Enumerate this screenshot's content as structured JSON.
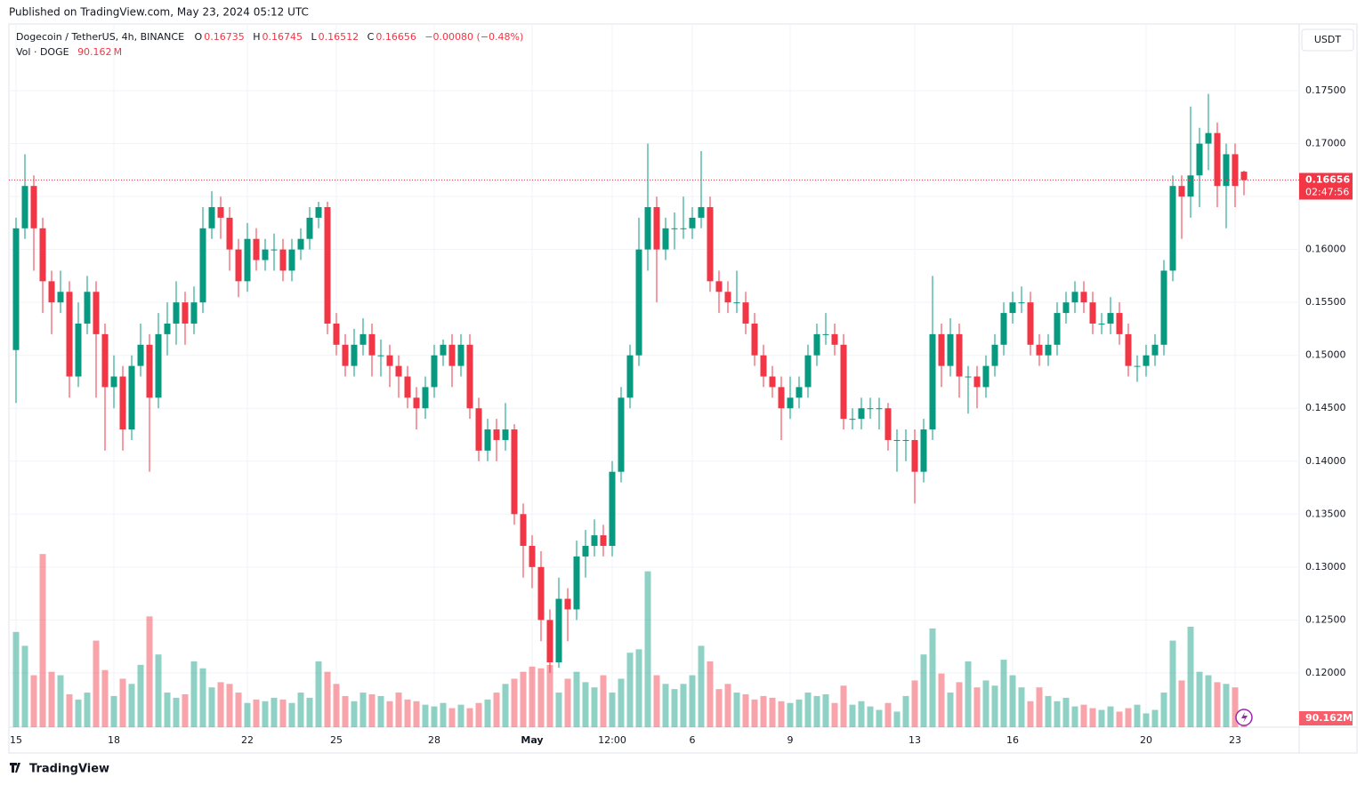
{
  "published": "Published on TradingView.com, May 23, 2024 05:12 UTC",
  "brand": "TradingView",
  "chart_data": {
    "type": "candlestick",
    "title": "Dogecoin / TetherUS, 4h, BINANCE",
    "ohlc_keys": [
      "O",
      "H",
      "L",
      "C"
    ],
    "change": "−0.00080 (−0.48%)",
    "volume_title": "Vol · DOGE",
    "volume_unit": "M",
    "currency": "USDT",
    "countdown": "02:47:56",
    "up_color": "#089981",
    "down_color": "#f23645",
    "ylim": [
      0.11487,
      0.1813
    ],
    "volume_ylim": [
      0,
      4060
    ],
    "yticks": [
      {
        "value": 0.12,
        "label": "0.12000"
      },
      {
        "value": 0.125,
        "label": "0.12500"
      },
      {
        "value": 0.13,
        "label": "0.13000"
      },
      {
        "value": 0.135,
        "label": "0.13500"
      },
      {
        "value": 0.14,
        "label": "0.14000"
      },
      {
        "value": 0.145,
        "label": "0.14500"
      },
      {
        "value": 0.15,
        "label": "0.15000"
      },
      {
        "value": 0.155,
        "label": "0.15500"
      },
      {
        "value": 0.16,
        "label": "0.16000"
      },
      {
        "value": 0.165,
        "label": "0.16500"
      },
      {
        "value": 0.17,
        "label": "0.17000"
      },
      {
        "value": 0.175,
        "label": "0.17500"
      }
    ],
    "grid": true,
    "categories": [
      "15",
      null,
      null,
      null,
      null,
      null,
      null,
      null,
      null,
      null,
      null,
      "18",
      null,
      null,
      null,
      null,
      null,
      null,
      null,
      null,
      null,
      null,
      null,
      null,
      null,
      null,
      "22",
      null,
      null,
      null,
      null,
      null,
      null,
      null,
      null,
      null,
      "25",
      null,
      null,
      null,
      null,
      null,
      null,
      null,
      null,
      null,
      null,
      "28",
      null,
      null,
      null,
      null,
      null,
      null,
      null,
      null,
      null,
      null,
      "May",
      null,
      null,
      null,
      null,
      null,
      null,
      null,
      null,
      "12:00",
      null,
      null,
      null,
      null,
      null,
      null,
      null,
      null,
      "6",
      null,
      null,
      null,
      null,
      null,
      null,
      null,
      null,
      null,
      null,
      "9",
      null,
      null,
      null,
      null,
      null,
      null,
      null,
      null,
      null,
      null,
      null,
      null,
      null,
      "13",
      null,
      null,
      null,
      null,
      null,
      null,
      null,
      null,
      null,
      null,
      "16",
      null,
      null,
      null,
      null,
      null,
      null,
      null,
      null,
      null,
      null,
      null,
      null,
      null,
      null,
      "20",
      null,
      null,
      null,
      null,
      null,
      null,
      null,
      null,
      null,
      "23",
      null
    ],
    "ohlc": [
      [
        0.1505,
        0.163,
        0.1455,
        0.162
      ],
      [
        0.162,
        0.169,
        0.161,
        0.166
      ],
      [
        0.166,
        0.167,
        0.158,
        0.162
      ],
      [
        0.162,
        0.163,
        0.154,
        0.157
      ],
      [
        0.157,
        0.158,
        0.152,
        0.155
      ],
      [
        0.155,
        0.158,
        0.154,
        0.156
      ],
      [
        0.156,
        0.157,
        0.146,
        0.148
      ],
      [
        0.148,
        0.155,
        0.147,
        0.153
      ],
      [
        0.153,
        0.1575,
        0.152,
        0.156
      ],
      [
        0.156,
        0.157,
        0.146,
        0.152
      ],
      [
        0.152,
        0.153,
        0.141,
        0.147
      ],
      [
        0.147,
        0.15,
        0.145,
        0.148
      ],
      [
        0.148,
        0.149,
        0.141,
        0.143
      ],
      [
        0.143,
        0.15,
        0.142,
        0.149
      ],
      [
        0.149,
        0.153,
        0.148,
        0.151
      ],
      [
        0.151,
        0.152,
        0.139,
        0.146
      ],
      [
        0.146,
        0.154,
        0.145,
        0.152
      ],
      [
        0.152,
        0.155,
        0.15,
        0.153
      ],
      [
        0.153,
        0.157,
        0.151,
        0.155
      ],
      [
        0.155,
        0.156,
        0.151,
        0.153
      ],
      [
        0.153,
        0.1565,
        0.152,
        0.155
      ],
      [
        0.155,
        0.164,
        0.154,
        0.162
      ],
      [
        0.162,
        0.1655,
        0.161,
        0.164
      ],
      [
        0.164,
        0.165,
        0.161,
        0.163
      ],
      [
        0.163,
        0.164,
        0.158,
        0.16
      ],
      [
        0.16,
        0.161,
        0.1555,
        0.157
      ],
      [
        0.157,
        0.1625,
        0.156,
        0.161
      ],
      [
        0.161,
        0.162,
        0.158,
        0.159
      ],
      [
        0.159,
        0.161,
        0.158,
        0.16
      ],
      [
        0.16,
        0.1615,
        0.158,
        0.16
      ],
      [
        0.16,
        0.161,
        0.157,
        0.158
      ],
      [
        0.158,
        0.161,
        0.157,
        0.16
      ],
      [
        0.16,
        0.162,
        0.159,
        0.161
      ],
      [
        0.161,
        0.164,
        0.16,
        0.163
      ],
      [
        0.163,
        0.1645,
        0.162,
        0.164
      ],
      [
        0.164,
        0.1645,
        0.152,
        0.153
      ],
      [
        0.153,
        0.154,
        0.15,
        0.151
      ],
      [
        0.151,
        0.152,
        0.148,
        0.149
      ],
      [
        0.149,
        0.1525,
        0.148,
        0.151
      ],
      [
        0.151,
        0.1535,
        0.15,
        0.152
      ],
      [
        0.152,
        0.153,
        0.148,
        0.15
      ],
      [
        0.15,
        0.1515,
        0.148,
        0.15
      ],
      [
        0.15,
        0.151,
        0.147,
        0.149
      ],
      [
        0.149,
        0.15,
        0.146,
        0.148
      ],
      [
        0.148,
        0.149,
        0.145,
        0.146
      ],
      [
        0.146,
        0.147,
        0.143,
        0.145
      ],
      [
        0.145,
        0.148,
        0.144,
        0.147
      ],
      [
        0.147,
        0.151,
        0.146,
        0.15
      ],
      [
        0.15,
        0.1515,
        0.149,
        0.151
      ],
      [
        0.151,
        0.152,
        0.147,
        0.149
      ],
      [
        0.149,
        0.152,
        0.148,
        0.151
      ],
      [
        0.151,
        0.152,
        0.144,
        0.145
      ],
      [
        0.145,
        0.146,
        0.14,
        0.141
      ],
      [
        0.141,
        0.144,
        0.14,
        0.143
      ],
      [
        0.143,
        0.144,
        0.14,
        0.142
      ],
      [
        0.142,
        0.1455,
        0.141,
        0.143
      ],
      [
        0.143,
        0.1435,
        0.134,
        0.135
      ],
      [
        0.135,
        0.136,
        0.129,
        0.132
      ],
      [
        0.132,
        0.133,
        0.128,
        0.13
      ],
      [
        0.13,
        0.1315,
        0.123,
        0.125
      ],
      [
        0.125,
        0.126,
        0.12,
        0.121
      ],
      [
        0.121,
        0.129,
        0.1205,
        0.127
      ],
      [
        0.127,
        0.128,
        0.123,
        0.126
      ],
      [
        0.126,
        0.1325,
        0.125,
        0.131
      ],
      [
        0.131,
        0.1335,
        0.129,
        0.132
      ],
      [
        0.132,
        0.1345,
        0.131,
        0.133
      ],
      [
        0.133,
        0.134,
        0.131,
        0.132
      ],
      [
        0.132,
        0.14,
        0.131,
        0.139
      ],
      [
        0.139,
        0.147,
        0.138,
        0.146
      ],
      [
        0.146,
        0.151,
        0.145,
        0.15
      ],
      [
        0.15,
        0.163,
        0.149,
        0.16
      ],
      [
        0.16,
        0.17,
        0.158,
        0.164
      ],
      [
        0.164,
        0.165,
        0.155,
        0.16
      ],
      [
        0.16,
        0.163,
        0.159,
        0.162
      ],
      [
        0.162,
        0.1635,
        0.16,
        0.162
      ],
      [
        0.162,
        0.165,
        0.161,
        0.162
      ],
      [
        0.162,
        0.164,
        0.161,
        0.163
      ],
      [
        0.163,
        0.1693,
        0.162,
        0.164
      ],
      [
        0.164,
        0.165,
        0.156,
        0.157
      ],
      [
        0.157,
        0.158,
        0.154,
        0.156
      ],
      [
        0.156,
        0.157,
        0.154,
        0.155
      ],
      [
        0.155,
        0.158,
        0.154,
        0.155
      ],
      [
        0.155,
        0.156,
        0.152,
        0.153
      ],
      [
        0.153,
        0.154,
        0.149,
        0.15
      ],
      [
        0.15,
        0.151,
        0.147,
        0.148
      ],
      [
        0.148,
        0.149,
        0.146,
        0.147
      ],
      [
        0.147,
        0.148,
        0.142,
        0.145
      ],
      [
        0.145,
        0.148,
        0.144,
        0.146
      ],
      [
        0.146,
        0.148,
        0.145,
        0.147
      ],
      [
        0.147,
        0.151,
        0.146,
        0.15
      ],
      [
        0.15,
        0.153,
        0.149,
        0.152
      ],
      [
        0.152,
        0.154,
        0.151,
        0.152
      ],
      [
        0.152,
        0.153,
        0.15,
        0.151
      ],
      [
        0.151,
        0.152,
        0.143,
        0.144
      ],
      [
        0.144,
        0.145,
        0.143,
        0.144
      ],
      [
        0.144,
        0.146,
        0.143,
        0.145
      ],
      [
        0.145,
        0.146,
        0.144,
        0.145
      ],
      [
        0.145,
        0.146,
        0.143,
        0.145
      ],
      [
        0.145,
        0.1455,
        0.141,
        0.142
      ],
      [
        0.142,
        0.143,
        0.139,
        0.142
      ],
      [
        0.142,
        0.143,
        0.14,
        0.142
      ],
      [
        0.142,
        0.143,
        0.136,
        0.139
      ],
      [
        0.139,
        0.144,
        0.138,
        0.143
      ],
      [
        0.143,
        0.1575,
        0.142,
        0.152
      ],
      [
        0.152,
        0.153,
        0.147,
        0.149
      ],
      [
        0.149,
        0.1535,
        0.148,
        0.152
      ],
      [
        0.152,
        0.153,
        0.146,
        0.148
      ],
      [
        0.148,
        0.149,
        0.1445,
        0.148
      ],
      [
        0.148,
        0.149,
        0.145,
        0.147
      ],
      [
        0.147,
        0.15,
        0.146,
        0.149
      ],
      [
        0.149,
        0.152,
        0.148,
        0.151
      ],
      [
        0.151,
        0.155,
        0.15,
        0.154
      ],
      [
        0.154,
        0.156,
        0.153,
        0.155
      ],
      [
        0.155,
        0.1565,
        0.154,
        0.155
      ],
      [
        0.155,
        0.156,
        0.15,
        0.151
      ],
      [
        0.151,
        0.152,
        0.149,
        0.15
      ],
      [
        0.15,
        0.152,
        0.149,
        0.151
      ],
      [
        0.151,
        0.155,
        0.15,
        0.154
      ],
      [
        0.154,
        0.156,
        0.153,
        0.155
      ],
      [
        0.155,
        0.157,
        0.154,
        0.156
      ],
      [
        0.156,
        0.157,
        0.154,
        0.155
      ],
      [
        0.155,
        0.156,
        0.152,
        0.153
      ],
      [
        0.153,
        0.154,
        0.152,
        0.153
      ],
      [
        0.153,
        0.1555,
        0.152,
        0.154
      ],
      [
        0.154,
        0.155,
        0.151,
        0.152
      ],
      [
        0.152,
        0.153,
        0.148,
        0.149
      ],
      [
        0.149,
        0.15,
        0.1475,
        0.149
      ],
      [
        0.149,
        0.151,
        0.148,
        0.15
      ],
      [
        0.15,
        0.152,
        0.149,
        0.151
      ],
      [
        0.151,
        0.159,
        0.15,
        0.158
      ],
      [
        0.158,
        0.167,
        0.157,
        0.166
      ],
      [
        0.166,
        0.167,
        0.161,
        0.165
      ],
      [
        0.165,
        0.1735,
        0.163,
        0.167
      ],
      [
        0.167,
        0.1715,
        0.164,
        0.17
      ],
      [
        0.17,
        0.1747,
        0.1675,
        0.171
      ],
      [
        0.171,
        0.172,
        0.164,
        0.166
      ],
      [
        0.166,
        0.17,
        0.162,
        0.169
      ],
      [
        0.169,
        0.17,
        0.164,
        0.166
      ],
      [
        0.16735,
        0.16745,
        0.16512,
        0.16656
      ]
    ],
    "volumes": [
      550,
      470,
      300,
      1000,
      320,
      300,
      190,
      160,
      200,
      500,
      330,
      180,
      280,
      250,
      360,
      640,
      420,
      200,
      170,
      190,
      380,
      340,
      230,
      260,
      250,
      200,
      140,
      160,
      150,
      170,
      160,
      140,
      200,
      170,
      380,
      320,
      250,
      180,
      150,
      200,
      190,
      180,
      150,
      200,
      160,
      150,
      130,
      120,
      140,
      110,
      130,
      110,
      140,
      160,
      200,
      250,
      280,
      320,
      350,
      340,
      360,
      200,
      280,
      320,
      260,
      230,
      300,
      200,
      280,
      430,
      450,
      900,
      300,
      250,
      220,
      250,
      300,
      470,
      380,
      220,
      250,
      200,
      190,
      160,
      180,
      170,
      150,
      140,
      160,
      200,
      180,
      190,
      140,
      240,
      130,
      150,
      120,
      100,
      140,
      90,
      180,
      270,
      420,
      570,
      310,
      200,
      260,
      380,
      230,
      270,
      240,
      390,
      300,
      230,
      150,
      230,
      180,
      150,
      170,
      120,
      130,
      110,
      100,
      120,
      90,
      110,
      130,
      80,
      100,
      200,
      500,
      270,
      580,
      320,
      300,
      260,
      250,
      230,
      90.162
    ]
  }
}
